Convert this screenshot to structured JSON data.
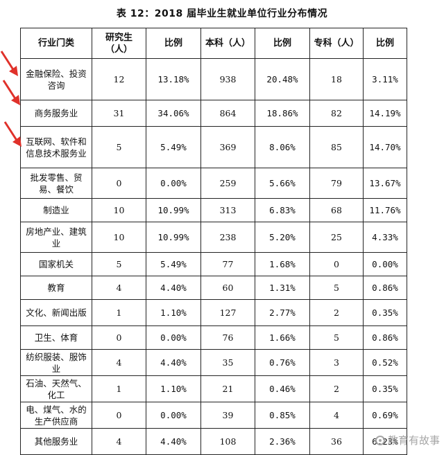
{
  "title": "表 12：2018 届毕业生就业单位行业分布情况",
  "headers": [
    "行业门类",
    "研究生（人）",
    "比例",
    "本科（人）",
    "比例",
    "专科（人）",
    "比例"
  ],
  "rows": [
    {
      "cat": "金融保险、投资咨询",
      "pg": "12",
      "pg_pct": "13.18%",
      "ug": "938",
      "ug_pct": "20.48%",
      "jc": "18",
      "jc_pct": "3.11%"
    },
    {
      "cat": "商务服务业",
      "pg": "31",
      "pg_pct": "34.06%",
      "ug": "864",
      "ug_pct": "18.86%",
      "jc": "82",
      "jc_pct": "14.19%"
    },
    {
      "cat": "互联网、软件和信息技术服务业",
      "pg": "5",
      "pg_pct": "5.49%",
      "ug": "369",
      "ug_pct": "8.06%",
      "jc": "85",
      "jc_pct": "14.70%"
    },
    {
      "cat": "批发零售、贸易、餐饮",
      "pg": "0",
      "pg_pct": "0.00%",
      "ug": "259",
      "ug_pct": "5.66%",
      "jc": "79",
      "jc_pct": "13.67%"
    },
    {
      "cat": "制造业",
      "pg": "10",
      "pg_pct": "10.99%",
      "ug": "313",
      "ug_pct": "6.83%",
      "jc": "68",
      "jc_pct": "11.76%"
    },
    {
      "cat": "房地产业、建筑业",
      "pg": "10",
      "pg_pct": "10.99%",
      "ug": "238",
      "ug_pct": "5.20%",
      "jc": "25",
      "jc_pct": "4.33%"
    },
    {
      "cat": "国家机关",
      "pg": "5",
      "pg_pct": "5.49%",
      "ug": "77",
      "ug_pct": "1.68%",
      "jc": "0",
      "jc_pct": "0.00%"
    },
    {
      "cat": "教育",
      "pg": "4",
      "pg_pct": "4.40%",
      "ug": "60",
      "ug_pct": "1.31%",
      "jc": "5",
      "jc_pct": "0.86%"
    },
    {
      "cat": "文化、新闻出版",
      "pg": "1",
      "pg_pct": "1.10%",
      "ug": "127",
      "ug_pct": "2.77%",
      "jc": "2",
      "jc_pct": "0.35%"
    },
    {
      "cat": "卫生、体育",
      "pg": "0",
      "pg_pct": "0.00%",
      "ug": "76",
      "ug_pct": "1.66%",
      "jc": "5",
      "jc_pct": "0.86%"
    },
    {
      "cat": "纺织服装、服饰业",
      "pg": "4",
      "pg_pct": "4.40%",
      "ug": "35",
      "ug_pct": "0.76%",
      "jc": "3",
      "jc_pct": "0.52%"
    },
    {
      "cat": "石油、天然气、化工",
      "pg": "1",
      "pg_pct": "1.10%",
      "ug": "21",
      "ug_pct": "0.46%",
      "jc": "2",
      "jc_pct": "0.35%"
    },
    {
      "cat": "电、煤气、水的生产供应商",
      "pg": "0",
      "pg_pct": "0.00%",
      "ug": "39",
      "ug_pct": "0.85%",
      "jc": "4",
      "jc_pct": "0.69%"
    },
    {
      "cat": "其他服务业",
      "pg": "4",
      "pg_pct": "4.40%",
      "ug": "108",
      "ug_pct": "2.36%",
      "jc": "36",
      "jc_pct": "6.23%"
    }
  ],
  "arrow_color": "#e0312a",
  "watermark": "教育有故事"
}
